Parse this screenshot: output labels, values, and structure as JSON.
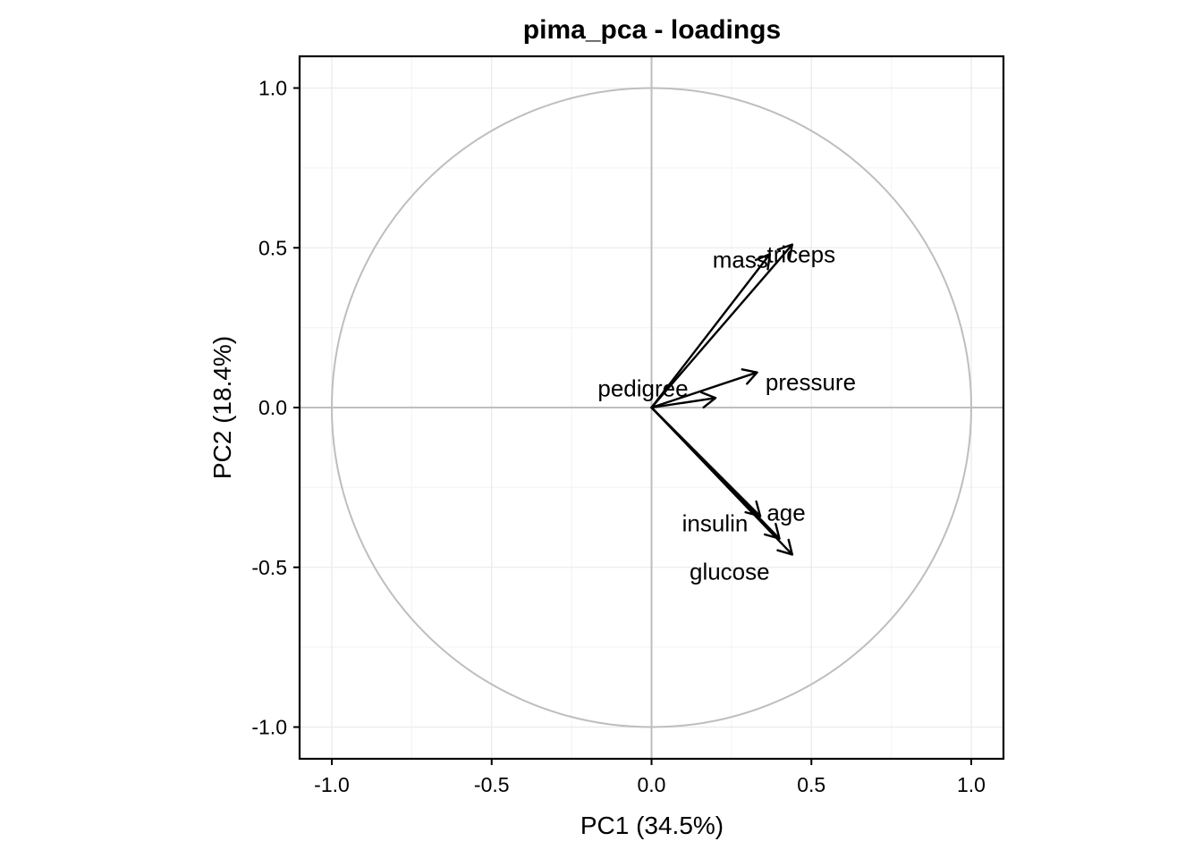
{
  "chart_data": {
    "type": "scatter",
    "title": "pima_pca - loadings",
    "xlabel": "PC1 (34.5%)",
    "ylabel": "PC2 (18.4%)",
    "xlim": [
      -1.1,
      1.1
    ],
    "ylim": [
      -1.1,
      1.1
    ],
    "xticks": [
      -1.0,
      -0.5,
      0.0,
      0.5,
      1.0
    ],
    "yticks": [
      -1.0,
      -0.5,
      0.0,
      0.5,
      1.0
    ],
    "xtick_labels": [
      "-1.0",
      "-0.5",
      "0.0",
      "0.5",
      "1.0"
    ],
    "ytick_labels": [
      "-1.0",
      "-0.5",
      "0.0",
      "0.5",
      "1.0"
    ],
    "grid": true,
    "unit_circle": true,
    "loadings": [
      {
        "name": "triceps",
        "x": 0.44,
        "y": 0.51
      },
      {
        "name": "mass",
        "x": 0.37,
        "y": 0.48
      },
      {
        "name": "pressure",
        "x": 0.33,
        "y": 0.11
      },
      {
        "name": "pedigree",
        "x": 0.2,
        "y": 0.03
      },
      {
        "name": "age",
        "x": 0.34,
        "y": -0.34
      },
      {
        "name": "insulin",
        "x": 0.4,
        "y": -0.41
      },
      {
        "name": "glucose",
        "x": 0.44,
        "y": -0.46
      }
    ]
  },
  "colors": {
    "arrow": "#000000",
    "circle": "#bebebe",
    "zero_lines": "#bebebe",
    "grid_major": "#ebebeb",
    "grid_minor": "#f5f5f5"
  }
}
